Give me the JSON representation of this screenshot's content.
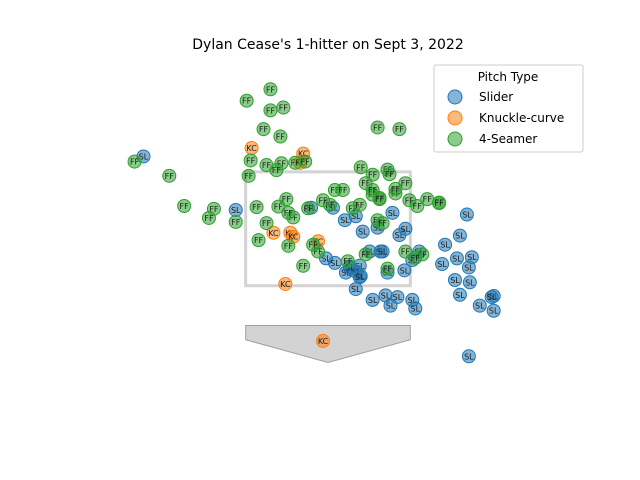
{
  "chart_data": {
    "type": "scatter",
    "title": "Dylan Cease's 1-hitter on Sept 3, 2022",
    "xlabel": "",
    "ylabel": "",
    "grid": false,
    "axes_visible": false,
    "xlim": [
      -2.5,
      2.5
    ],
    "ylim": [
      -1.0,
      5.5
    ],
    "strike_zone": {
      "x": [
        -0.83,
        0.83
      ],
      "y": [
        1.5,
        3.5
      ],
      "color": "#d3d3d3"
    },
    "home_plate": {
      "fill": "#d3d3d3",
      "edge": "#a0a0a0"
    },
    "legend": {
      "title": "Pitch Type",
      "position": "upper right",
      "entries": [
        {
          "name": "Slider",
          "code": "SL",
          "color": "#1f77b4"
        },
        {
          "name": "Knuckle-curve",
          "code": "KC",
          "color": "#ff7f0e"
        },
        {
          "name": "4-Seamer",
          "code": "FF",
          "color": "#2ca02c"
        }
      ]
    },
    "series": [
      {
        "name": "Slider",
        "code": "SL",
        "points": [
          [
            -1.86,
            3.77
          ],
          [
            -0.93,
            2.83
          ],
          [
            -0.17,
            2.87
          ],
          [
            0.05,
            2.87
          ],
          [
            0.28,
            2.72
          ],
          [
            0.17,
            2.65
          ],
          [
            0.5,
            2.52
          ],
          [
            0.72,
            2.39
          ],
          [
            0.78,
            2.5
          ],
          [
            0.53,
            2.1
          ],
          [
            0.92,
            2.1
          ],
          [
            1.18,
            2.22
          ],
          [
            1.33,
            2.38
          ],
          [
            1.4,
            2.75
          ],
          [
            0.65,
            2.78
          ],
          [
            0.35,
            2.45
          ],
          [
            0.42,
            2.1
          ],
          [
            0.55,
            2.1
          ],
          [
            0.32,
            1.85
          ],
          [
            0.6,
            1.73
          ],
          [
            0.77,
            1.77
          ],
          [
            0.85,
            1.95
          ],
          [
            1.15,
            1.88
          ],
          [
            1.3,
            1.98
          ],
          [
            1.42,
            1.82
          ],
          [
            1.45,
            2.0
          ],
          [
            1.43,
            1.56
          ],
          [
            0.33,
            1.67
          ],
          [
            -0.02,
            1.98
          ],
          [
            0.07,
            1.9
          ],
          [
            0.22,
            1.83
          ],
          [
            0.28,
            1.75
          ],
          [
            0.18,
            1.73
          ],
          [
            0.32,
            1.65
          ],
          [
            0.58,
            1.33
          ],
          [
            0.7,
            1.3
          ],
          [
            0.85,
            1.25
          ],
          [
            1.28,
            1.6
          ],
          [
            1.33,
            1.34
          ],
          [
            1.67,
            1.32
          ],
          [
            1.53,
            1.15
          ],
          [
            0.88,
            1.1
          ],
          [
            1.67,
            1.06
          ],
          [
            0.45,
            1.25
          ],
          [
            0.63,
            1.15
          ],
          [
            1.65,
            1.3
          ],
          [
            0.22,
            1.82
          ],
          [
            0.28,
            1.44
          ],
          [
            1.42,
            0.26
          ]
        ]
      },
      {
        "name": "Knuckle-curve",
        "code": "KC",
        "points": [
          [
            -0.77,
            3.92
          ],
          [
            -0.25,
            3.82
          ],
          [
            -0.28,
            3.66
          ],
          [
            -0.55,
            2.43
          ],
          [
            -0.38,
            2.43
          ],
          [
            -0.35,
            2.36
          ],
          [
            -0.1,
            2.28
          ],
          [
            -0.43,
            1.53
          ],
          [
            -0.05,
            0.53
          ]
        ]
      },
      {
        "name": "4-Seamer",
        "code": "FF",
        "points": [
          [
            -0.58,
            4.95
          ],
          [
            -0.82,
            4.75
          ],
          [
            -0.58,
            4.58
          ],
          [
            -0.45,
            4.63
          ],
          [
            -0.65,
            4.25
          ],
          [
            -0.48,
            4.12
          ],
          [
            0.5,
            4.28
          ],
          [
            0.72,
            4.25
          ],
          [
            -1.95,
            3.68
          ],
          [
            -0.78,
            3.7
          ],
          [
            -0.62,
            3.62
          ],
          [
            -0.47,
            3.65
          ],
          [
            -0.52,
            3.53
          ],
          [
            -0.33,
            3.66
          ],
          [
            -0.23,
            3.68
          ],
          [
            -1.6,
            3.43
          ],
          [
            -0.8,
            3.43
          ],
          [
            -0.93,
            2.62
          ],
          [
            -0.62,
            2.6
          ],
          [
            -0.72,
            2.88
          ],
          [
            -0.5,
            2.89
          ],
          [
            -0.2,
            2.86
          ],
          [
            -0.42,
            3.02
          ],
          [
            0.07,
            3.18
          ],
          [
            0.15,
            3.18
          ],
          [
            0.38,
            3.3
          ],
          [
            0.45,
            3.1
          ],
          [
            0.52,
            3.04
          ],
          [
            0.02,
            2.92
          ],
          [
            0.25,
            2.86
          ],
          [
            0.52,
            3.02
          ],
          [
            0.68,
            3.12
          ],
          [
            0.78,
            3.3
          ],
          [
            0.82,
            3.0
          ],
          [
            0.9,
            2.9
          ],
          [
            0.68,
            3.2
          ],
          [
            0.32,
            2.92
          ],
          [
            -0.7,
            2.3
          ],
          [
            -0.4,
            2.2
          ],
          [
            -0.1,
            2.1
          ],
          [
            -0.35,
            2.7
          ],
          [
            -0.05,
            3.0
          ],
          [
            -0.15,
            2.22
          ],
          [
            0.6,
            1.8
          ],
          [
            0.38,
            2.05
          ],
          [
            0.2,
            1.93
          ],
          [
            1.0,
            3.02
          ],
          [
            1.12,
            2.95
          ],
          [
            -1.15,
            2.85
          ],
          [
            -1.45,
            2.9
          ],
          [
            0.33,
            3.58
          ],
          [
            0.45,
            3.45
          ],
          [
            0.6,
            3.54
          ],
          [
            0.45,
            3.18
          ],
          [
            0.62,
            3.46
          ],
          [
            0.5,
            2.65
          ],
          [
            0.55,
            2.6
          ],
          [
            -0.25,
            1.85
          ],
          [
            0.95,
            2.05
          ],
          [
            -0.4,
            2.78
          ],
          [
            0.78,
            2.1
          ],
          [
            0.88,
            1.99
          ],
          [
            1.12,
            2.96
          ],
          [
            -1.2,
            2.69
          ]
        ]
      }
    ]
  }
}
